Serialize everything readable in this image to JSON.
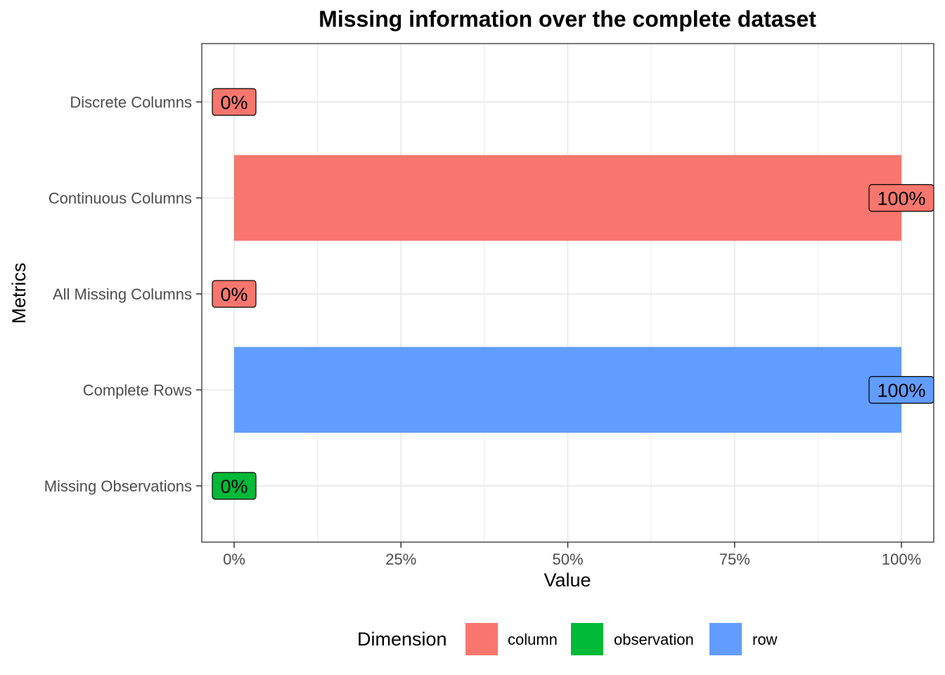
{
  "chart_data": {
    "type": "bar",
    "orientation": "horizontal",
    "title": "Missing information over the complete dataset",
    "xlabel": "Value",
    "ylabel": "Metrics",
    "xlim": [
      0,
      1
    ],
    "x_ticks": [
      0,
      0.25,
      0.5,
      0.75,
      1
    ],
    "x_tick_labels": [
      "0%",
      "25%",
      "50%",
      "75%",
      "100%"
    ],
    "grid": true,
    "categories": [
      "Discrete Columns",
      "Continuous Columns",
      "All Missing Columns",
      "Complete Rows",
      "Missing Observations"
    ],
    "values": [
      0,
      1,
      0,
      1,
      0
    ],
    "value_labels": [
      "0%",
      "100%",
      "0%",
      "100%",
      "0%"
    ],
    "dimension": [
      "column",
      "column",
      "column",
      "row",
      "observation"
    ],
    "legend": {
      "title": "Dimension",
      "position": "bottom",
      "entries": [
        {
          "name": "column",
          "color": "#F8766D"
        },
        {
          "name": "observation",
          "color": "#00BA38"
        },
        {
          "name": "row",
          "color": "#619CFF"
        }
      ]
    }
  }
}
